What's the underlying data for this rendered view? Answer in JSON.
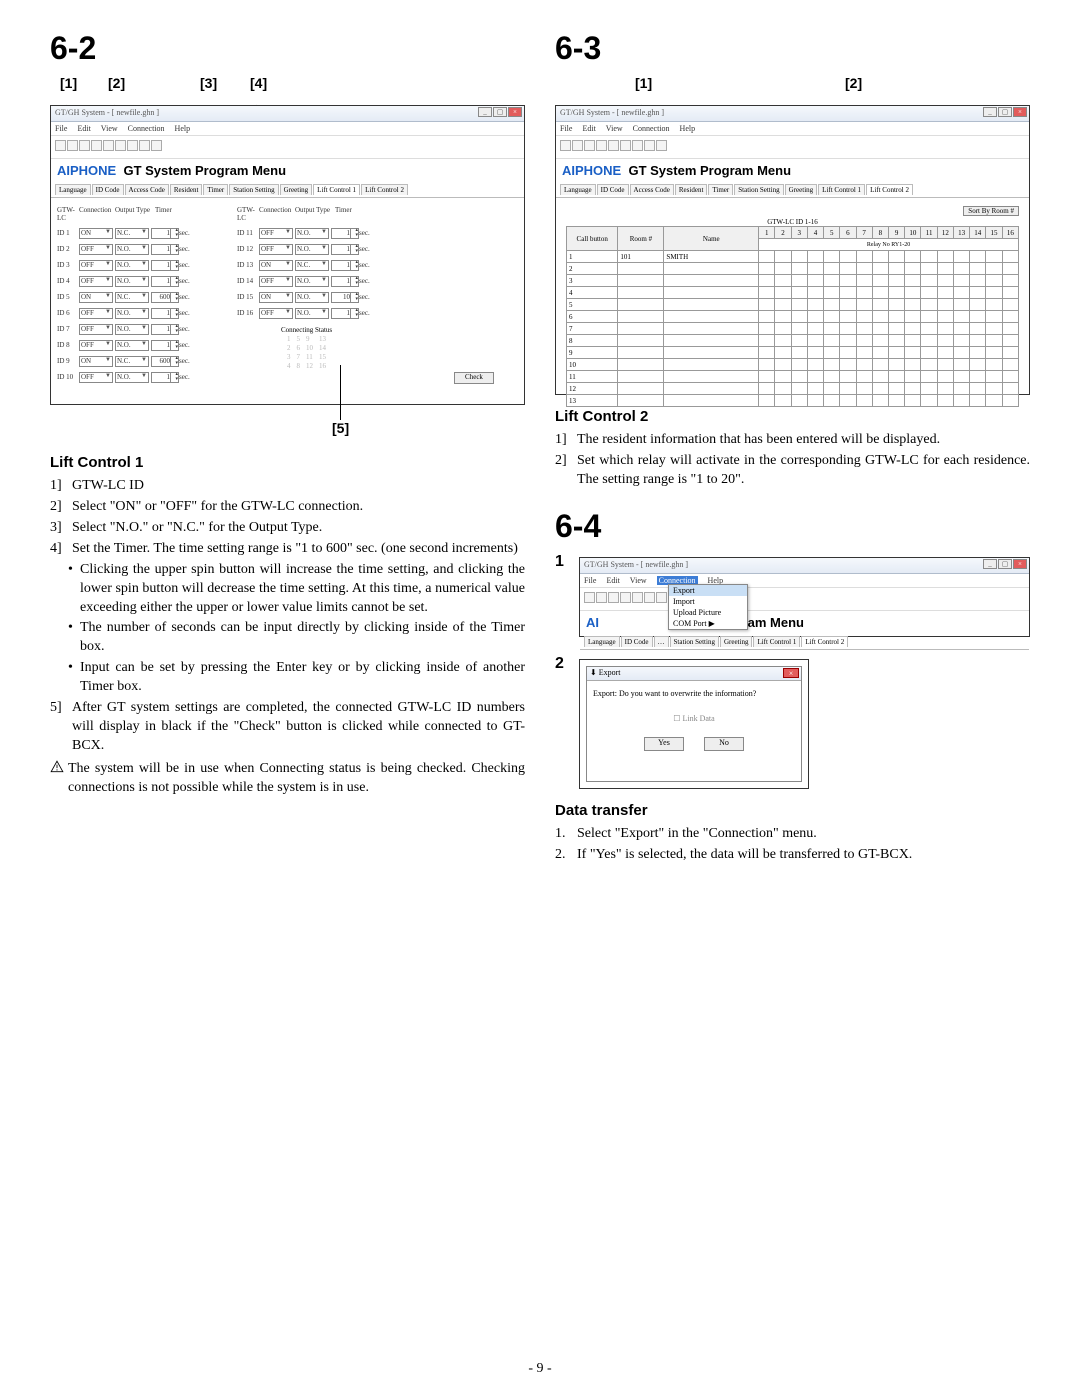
{
  "sec62": {
    "number": "6-2",
    "callouts": [
      "[1]",
      "[2]",
      "[3]",
      "[4]",
      "[5]"
    ],
    "win_title": "GT/GH System - [ newfile.ghn ]",
    "menus": [
      "File",
      "Edit",
      "View",
      "Connection",
      "Help"
    ],
    "app_title_logo": "AIPHONE",
    "app_title": "GT System Program Menu",
    "tabs": [
      "Language",
      "ID Code",
      "Access Code",
      "Resident",
      "Timer",
      "Station Setting",
      "Greeting",
      "Lift Control 1",
      "Lift Control 2"
    ],
    "active_tab": 7,
    "head_left": [
      "GTW-LC",
      "Connection",
      "Output Type",
      "Timer"
    ],
    "head_right": [
      "GTW-LC",
      "Connection",
      "Output Type",
      "Timer"
    ],
    "rows_left": [
      {
        "id": "ID 1",
        "conn": "ON",
        "out": "N.C.",
        "t": "1",
        "u": "sec."
      },
      {
        "id": "ID 2",
        "conn": "OFF",
        "out": "N.O.",
        "t": "1",
        "u": "sec."
      },
      {
        "id": "ID 3",
        "conn": "OFF",
        "out": "N.O.",
        "t": "1",
        "u": "sec."
      },
      {
        "id": "ID 4",
        "conn": "OFF",
        "out": "N.O.",
        "t": "1",
        "u": "sec."
      },
      {
        "id": "ID 5",
        "conn": "ON",
        "out": "N.C.",
        "t": "600",
        "u": "sec."
      },
      {
        "id": "ID 6",
        "conn": "OFF",
        "out": "N.O.",
        "t": "1",
        "u": "sec."
      },
      {
        "id": "ID 7",
        "conn": "OFF",
        "out": "N.O.",
        "t": "1",
        "u": "sec."
      },
      {
        "id": "ID 8",
        "conn": "OFF",
        "out": "N.O.",
        "t": "1",
        "u": "sec."
      },
      {
        "id": "ID 9",
        "conn": "ON",
        "out": "N.C.",
        "t": "600",
        "u": "sec."
      },
      {
        "id": "ID 10",
        "conn": "OFF",
        "out": "N.O.",
        "t": "1",
        "u": "sec."
      }
    ],
    "rows_right": [
      {
        "id": "ID 11",
        "conn": "OFF",
        "out": "N.O.",
        "t": "1",
        "u": "sec."
      },
      {
        "id": "ID 12",
        "conn": "OFF",
        "out": "N.O.",
        "t": "1",
        "u": "sec."
      },
      {
        "id": "ID 13",
        "conn": "ON",
        "out": "N.C.",
        "t": "1",
        "u": "sec."
      },
      {
        "id": "ID 14",
        "conn": "OFF",
        "out": "N.O.",
        "t": "1",
        "u": "sec."
      },
      {
        "id": "ID 15",
        "conn": "ON",
        "out": "N.O.",
        "t": "10",
        "u": "sec."
      },
      {
        "id": "ID 16",
        "conn": "OFF",
        "out": "N.O.",
        "t": "1",
        "u": "sec."
      }
    ],
    "cs_label": "Connecting Status",
    "cs_grid": [
      [
        "1",
        "5",
        "9",
        "13"
      ],
      [
        "2",
        "6",
        "10",
        "14"
      ],
      [
        "3",
        "7",
        "11",
        "15"
      ],
      [
        "4",
        "8",
        "12",
        "16"
      ]
    ],
    "check_btn": "Check",
    "body_title": "Lift Control 1",
    "body_items": [
      "GTW-LC ID",
      "Select \"ON\" or \"OFF\" for the GTW-LC connection.",
      "Select \"N.O.\" or \"N.C.\" for the Output Type.",
      "Set the Timer. The time setting range is \"1 to 600\" sec. (one second increments)"
    ],
    "bullets": [
      "Clicking the upper spin button will increase the time setting, and clicking the lower spin button will decrease the time setting. At this time, a numerical value exceeding either the upper or lower value limits cannot be set.",
      "The number of seconds can be input directly by clicking inside of the Timer box.",
      "Input can be set by pressing the Enter key or by clicking inside of another Timer box."
    ],
    "item5": "After GT system settings are completed, the connected GTW-LC ID numbers will display in black if the \"Check\" button is clicked while connected to GT-BCX.",
    "warn": "The system will be in use when Connecting status is being checked. Checking connections is not possible while the system is in use."
  },
  "sec63": {
    "number": "6-3",
    "callouts": [
      "[1]",
      "[2]"
    ],
    "win_title": "GT/GH System - [ newfile.ghn ]",
    "menus": [
      "File",
      "Edit",
      "View",
      "Connection",
      "Help"
    ],
    "app_title": "GT System Program Menu",
    "tabs": [
      "Language",
      "ID Code",
      "Access Code",
      "Resident",
      "Timer",
      "Station Setting",
      "Greeting",
      "Lift Control 1",
      "Lift Control 2"
    ],
    "active_tab": 8,
    "sort_btn": "Sort By Room #",
    "subhead": "GTW-LC ID 1-16",
    "relay_label": "Relay No RY1-20",
    "cols": [
      "Call button",
      "Room #",
      "Name",
      "1",
      "2",
      "3",
      "4",
      "5",
      "6",
      "7",
      "8",
      "9",
      "10",
      "11",
      "12",
      "13",
      "14",
      "15",
      "16"
    ],
    "first_row": {
      "cb": "1",
      "room": "101",
      "name": "SMITH"
    },
    "empty_rows": 12,
    "body_title": "Lift Control 2",
    "body_items": [
      "The resident information that has been entered will be displayed.",
      "Set which relay will activate in the corresponding GTW-LC for each residence. The setting range is \"1 to 20\"."
    ]
  },
  "sec64": {
    "number": "6-4",
    "steps": [
      "1",
      "2"
    ],
    "win_title": "GT/GH System - [ newfile.ghn ]",
    "menus": [
      "File",
      "Edit",
      "View",
      "Connection",
      "Help"
    ],
    "conn_hi": "Connection",
    "app_title_frag": "stem Program Menu",
    "tabs": [
      "Language",
      "ID Code",
      "Access Code",
      "Resident",
      "Timer",
      "Station Setting",
      "Greeting",
      "Lift Control 1",
      "Lift Control 2"
    ],
    "active_tab": 8,
    "conn_items": [
      {
        "label": "Export",
        "hl": true
      },
      {
        "label": "Import",
        "hl": false
      },
      {
        "label": "Upload Picture",
        "hl": false
      },
      {
        "label": "COM Port     ▶",
        "hl": false
      }
    ],
    "dlg_title": "Export",
    "dlg_msg": "Export: Do you want to overwrite the information?",
    "dlg_cb": "☐ Link Data",
    "dlg_yes": "Yes",
    "dlg_no": "No",
    "body_title": "Data transfer",
    "body_items": [
      "Select \"Export\" in the \"Connection\" menu.",
      "If \"Yes\" is selected, the data will be transferred to GT-BCX."
    ]
  },
  "page_num": "- 9 -"
}
